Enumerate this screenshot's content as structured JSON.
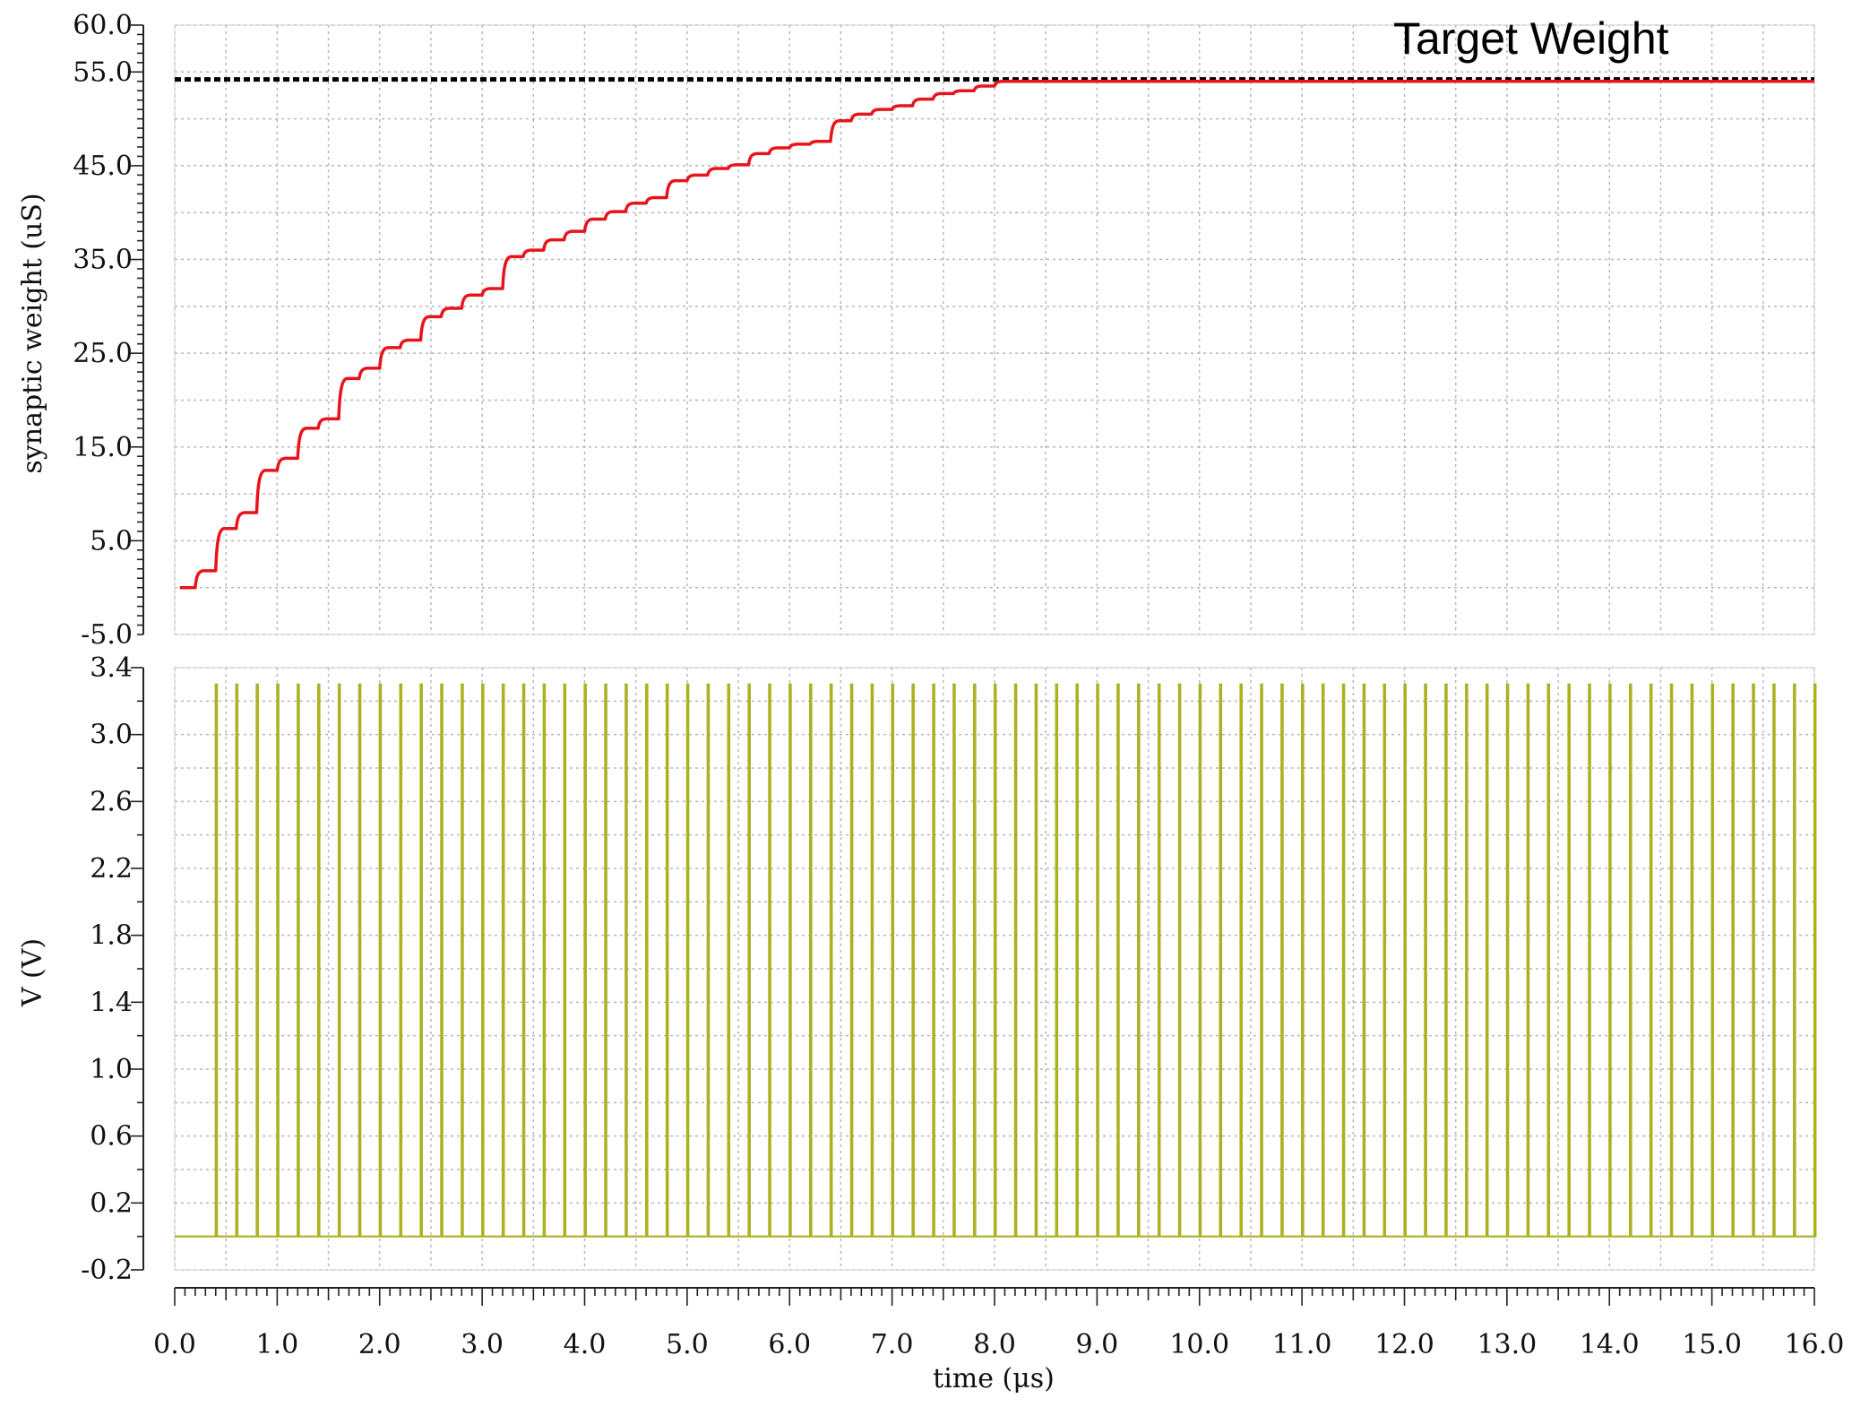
{
  "chart_data": [
    {
      "type": "line",
      "panel": "top",
      "ylabel": "synaptic weight (uS)",
      "xlim": [
        0,
        16
      ],
      "ylim": [
        -5,
        60
      ],
      "y_ticks": [
        "60.0",
        "55.0",
        "45.0",
        "35.0",
        "25.0",
        "15.0",
        "5.0",
        "-5.0"
      ],
      "y_tick_values": [
        60,
        55,
        45,
        35,
        25,
        15,
        5,
        -5
      ],
      "grid": true,
      "annotations": [
        {
          "text": "Target Weight",
          "position": "top-right"
        }
      ],
      "reference_line": {
        "name": "Target Weight",
        "y": 54.2,
        "style": "dashed",
        "color": "#000000"
      },
      "series": [
        {
          "color": "#e8141b",
          "steps_x": [
            0.2,
            0.4,
            0.6,
            0.8,
            1.0,
            1.2,
            1.4,
            1.6,
            1.8,
            2.0,
            2.2,
            2.4,
            2.6,
            2.8,
            3.0,
            3.2,
            3.4,
            3.6,
            3.8,
            4.0,
            4.2,
            4.4,
            4.6,
            4.8,
            5.0,
            5.2,
            5.4,
            5.6,
            5.8,
            6.0,
            6.2,
            6.4,
            6.6,
            6.8,
            7.0,
            7.2,
            7.4,
            7.6,
            7.8,
            8.0,
            8.2
          ],
          "levels": [
            0.0,
            1.8,
            6.3,
            8.0,
            12.5,
            13.8,
            17.0,
            18.0,
            22.3,
            23.4,
            25.6,
            26.4,
            28.9,
            29.8,
            31.2,
            31.9,
            35.3,
            36.0,
            37.1,
            38.0,
            39.3,
            40.1,
            41.0,
            41.6,
            43.4,
            44.0,
            44.7,
            45.1,
            46.3,
            46.9,
            47.3,
            47.6,
            49.8,
            50.5,
            51.0,
            51.4,
            52.1,
            52.7,
            53.0,
            53.5,
            54.0,
            54.0
          ],
          "x_end": 16.0
        }
      ]
    },
    {
      "type": "line",
      "panel": "bottom",
      "ylabel": "V (V)",
      "xlabel": "time (μs)",
      "xlim": [
        0,
        16
      ],
      "ylim": [
        -0.2,
        3.4
      ],
      "x_ticks": [
        "0.0",
        "1.0",
        "2.0",
        "3.0",
        "4.0",
        "5.0",
        "6.0",
        "7.0",
        "8.0",
        "9.0",
        "10.0",
        "11.0",
        "12.0",
        "13.0",
        "14.0",
        "15.0",
        "16.0"
      ],
      "x_tick_values": [
        0,
        1,
        2,
        3,
        4,
        5,
        6,
        7,
        8,
        9,
        10,
        11,
        12,
        13,
        14,
        15,
        16
      ],
      "y_ticks": [
        "3.4",
        "3.0",
        "2.6",
        "2.2",
        "1.8",
        "1.4",
        "1.0",
        "0.6",
        "0.2",
        "-0.2"
      ],
      "y_tick_values": [
        3.4,
        3.0,
        2.6,
        2.2,
        1.8,
        1.4,
        1.0,
        0.6,
        0.2,
        -0.2
      ],
      "grid": true,
      "series": [
        {
          "color": "#aab220",
          "pulse_period": 0.2,
          "first_pulse": 0.4,
          "pulse_count": 80,
          "pulse_high": 3.3,
          "baseline": 0.0
        }
      ]
    }
  ]
}
